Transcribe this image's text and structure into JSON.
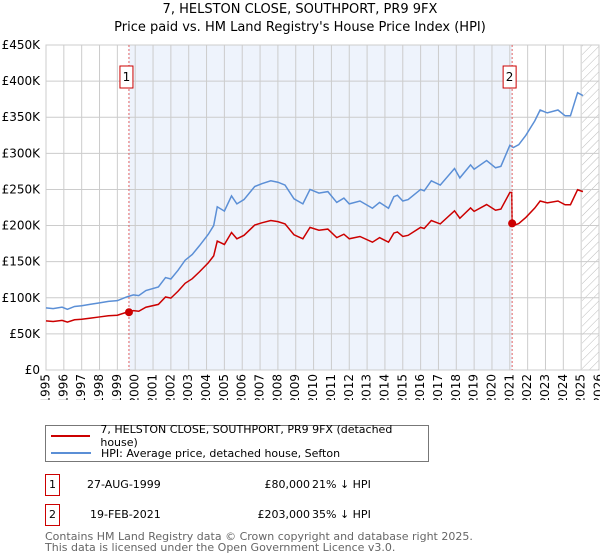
{
  "title": "7, HELSTON CLOSE, SOUTHPORT, PR9 9FX",
  "subtitle": "Price paid vs. HM Land Registry's House Price Index (HPI)",
  "chart_data": {
    "type": "line",
    "title": "7, HELSTON CLOSE, SOUTHPORT, PR9 9FX",
    "subtitle": "Price paid vs. HM Land Registry's House Price Index (HPI)",
    "xlim": [
      1995,
      2026
    ],
    "ylim": [
      0,
      450000
    ],
    "x_ticks": [
      "1995",
      "1996",
      "1997",
      "1998",
      "1999",
      "2000",
      "2001",
      "2002",
      "2003",
      "2004",
      "2005",
      "2006",
      "2007",
      "2008",
      "2009",
      "2010",
      "2011",
      "2012",
      "2013",
      "2014",
      "2015",
      "2016",
      "2017",
      "2018",
      "2019",
      "2020",
      "2021",
      "2022",
      "2023",
      "2024",
      "2025",
      "2026"
    ],
    "y_ticks": [
      {
        "v": 0,
        "label": "£0"
      },
      {
        "v": 50000,
        "label": "£50K"
      },
      {
        "v": 100000,
        "label": "£100K"
      },
      {
        "v": 150000,
        "label": "£150K"
      },
      {
        "v": 200000,
        "label": "£200K"
      },
      {
        "v": 250000,
        "label": "£250K"
      },
      {
        "v": 300000,
        "label": "£300K"
      },
      {
        "v": 350000,
        "label": "£350K"
      },
      {
        "v": 400000,
        "label": "£400K"
      },
      {
        "v": 450000,
        "label": "£450K"
      }
    ],
    "grid": true,
    "series": [
      {
        "name": "7, HELSTON CLOSE, SOUTHPORT, PR9 9FX (detached house)",
        "color": "#cc0000",
        "derived_from_hpi": true,
        "ratio_before_sale2": 0.79,
        "ratio_after_sale2": 0.65
      },
      {
        "name": "HPI: Average price, detached house, Sefton",
        "color": "#5b8fd6",
        "x": [
          1995.0,
          1995.4,
          1995.9,
          1996.2,
          1996.6,
          1997.0,
          1997.5,
          1998.0,
          1998.5,
          1999.0,
          1999.5,
          1999.9,
          2000.2,
          2000.6,
          2001.3,
          2001.7,
          2002.0,
          2002.4,
          2002.8,
          2003.2,
          2003.6,
          2004.1,
          2004.4,
          2004.6,
          2005.0,
          2005.4,
          2005.7,
          2006.1,
          2006.7,
          2007.1,
          2007.6,
          2008.0,
          2008.4,
          2008.9,
          2009.4,
          2009.8,
          2010.3,
          2010.8,
          2011.3,
          2011.7,
          2012.0,
          2012.6,
          2013.3,
          2013.7,
          2014.2,
          2014.5,
          2014.7,
          2015.0,
          2015.3,
          2016.0,
          2016.2,
          2016.6,
          2017.1,
          2017.9,
          2018.2,
          2018.8,
          2019.0,
          2019.7,
          2020.2,
          2020.5,
          2021.0,
          2021.2,
          2021.5,
          2021.9,
          2022.4,
          2022.7,
          2023.1,
          2023.7,
          2024.1,
          2024.4,
          2024.8,
          2025.1
        ],
        "values": [
          86000,
          85000,
          87000,
          84000,
          88000,
          89000,
          91000,
          93000,
          95000,
          96000,
          101000,
          104000,
          103000,
          110000,
          115000,
          128000,
          126000,
          138000,
          152000,
          160000,
          172000,
          188000,
          200000,
          226000,
          220000,
          241000,
          230000,
          236000,
          254000,
          258000,
          262000,
          260000,
          256000,
          237000,
          230000,
          250000,
          245000,
          247000,
          232000,
          238000,
          230000,
          234000,
          224000,
          232000,
          224000,
          240000,
          242000,
          234000,
          236000,
          250000,
          248000,
          262000,
          256000,
          279000,
          266000,
          284000,
          278000,
          290000,
          280000,
          282000,
          311000,
          308000,
          312000,
          325000,
          345000,
          360000,
          356000,
          360000,
          352000,
          352000,
          384000,
          380000
        ]
      }
    ],
    "annotations": [
      {
        "label": "1",
        "x": 1999.65,
        "price": 80000,
        "date": "27-AUG-1999",
        "price_text": "£80,000",
        "hpi_text": "21% ↓ HPI"
      },
      {
        "label": "2",
        "x": 2021.13,
        "price": 203000,
        "date": "19-FEB-2021",
        "price_text": "£203,000",
        "hpi_text": "35% ↓ HPI"
      }
    ],
    "forecast_hatch_from": 2025.05
  },
  "footer": [
    "Contains HM Land Registry data © Crown copyright and database right 2025.",
    "This data is licensed under the Open Government Licence v3.0."
  ]
}
